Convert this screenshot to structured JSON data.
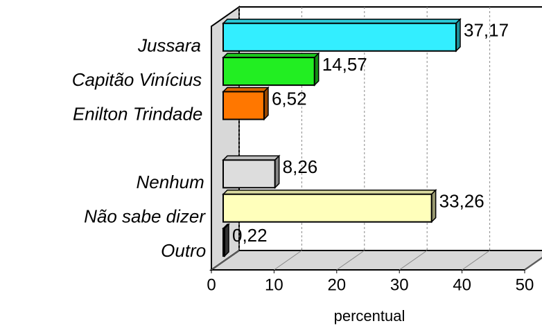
{
  "chart_data": {
    "type": "bar3d_horizontal",
    "categories": [
      "Jussara",
      "Capitão Vinícius",
      "Enilton Trindade",
      null,
      "Nenhum",
      "Não sabe dizer",
      "Outro"
    ],
    "values": [
      37.17,
      14.57,
      6.52,
      null,
      8.26,
      33.26,
      0.22
    ],
    "value_labels": [
      "37,17",
      "14,57",
      "6,52",
      null,
      "8,26",
      "33,26",
      "0,22"
    ],
    "colors": [
      "#33eeff",
      "#22ee22",
      "#ff7700",
      null,
      "#dddddd",
      "#ffffbb",
      "#555555"
    ],
    "xlim": [
      0,
      50
    ],
    "xticks": [
      0,
      10,
      20,
      30,
      40,
      50
    ],
    "xlabel": "percentual",
    "grid": true
  }
}
